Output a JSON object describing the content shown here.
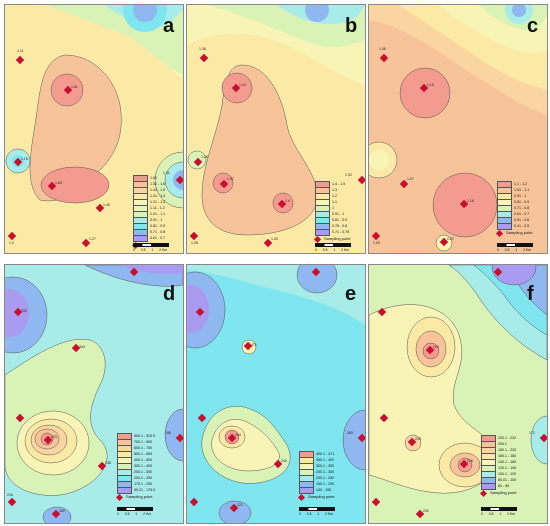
{
  "panels": [
    {
      "label": "a",
      "legend": [
        "1.61",
        "1.51 - 1.6",
        "1.41 - 1.5",
        "1.31 - 1.4",
        "1.21 - 1.3",
        "1.11 - 1.2",
        "1.01 - 1.1",
        "0.91 - 1",
        "0.81 - 0.9",
        "0.71 - 0.8",
        "0.61 - 0.7"
      ]
    },
    {
      "label": "b",
      "legend": [
        "1.4 - 1.5",
        "1.3",
        "1.2",
        "1.1",
        "1",
        "0.91 - 1",
        "0.81 - 0.9",
        "0.76 - 0.8",
        "0.71 - 0.75"
      ]
    },
    {
      "label": "c",
      "legend": [
        "1.1 - 1.2",
        "1.01 - 1.1",
        "0.91 - 1",
        "0.81 - 0.9",
        "0.71 - 0.8",
        "0.61 - 0.7",
        "0.51 - 0.6",
        "0.41 - 0.5"
      ]
    },
    {
      "label": "d",
      "legend": [
        "900.1 - 923.5",
        "700.1 - 900",
        "600.1 - 700",
        "500.1 - 600",
        "400.1 - 500",
        "300.1 - 400",
        "250.1 - 300",
        "200.1 - 250",
        "175.1 - 200",
        "99.21 - 175.0"
      ]
    },
    {
      "label": "e",
      "legend": [
        "400.1 - 471",
        "350.1 - 400",
        "300.1 - 350",
        "250.1 - 300",
        "200.1 - 250",
        "150.1 - 200",
        "140 - 150"
      ]
    },
    {
      "label": "f",
      "legend": [
        "220.1 - 232",
        "200.1",
        "180.1 - 220",
        "160.1 - 180",
        "140.1 - 160",
        "120.1 - 140",
        "100.1 - 120",
        "80.01 - 100",
        "60 - 80"
      ]
    }
  ],
  "sampling_point_label": "Sampling point",
  "scale_ticks": [
    "0",
    "0.5",
    "1",
    "2 Km"
  ],
  "colors": {
    "peak": "#f39b8e",
    "warm": "#f7c49a",
    "orange": "#fad59f",
    "yellow": "#fbeaa6",
    "pale": "#f8f4b6",
    "lightgreen": "#d9f2b5",
    "cyan": "#a8ecea",
    "aqua": "#7fe6ef",
    "blue": "#8fb8f0",
    "violet": "#a89bf0",
    "marker": "#c8102e"
  },
  "point_labels": {
    "a": [
      "1.11",
      "1.61",
      "1.15",
      "1.63",
      "1.45",
      "1.31",
      "1.2",
      "1.27"
    ],
    "b": [
      "1.36",
      "1.44",
      "1.25",
      "1.37",
      "1.4",
      "1.32",
      "1.28",
      "1.33"
    ],
    "c": [
      "1.06",
      "1.15",
      "1.07",
      "1.16",
      "0.57",
      "1.03"
    ],
    "d": [
      "700",
      "344",
      "923",
      "238",
      "216",
      "180",
      "158"
    ],
    "e": [
      "471",
      "404",
      "240",
      "221",
      "263"
    ],
    "f": [
      "220",
      "228",
      "226",
      "232",
      "172"
    ]
  }
}
